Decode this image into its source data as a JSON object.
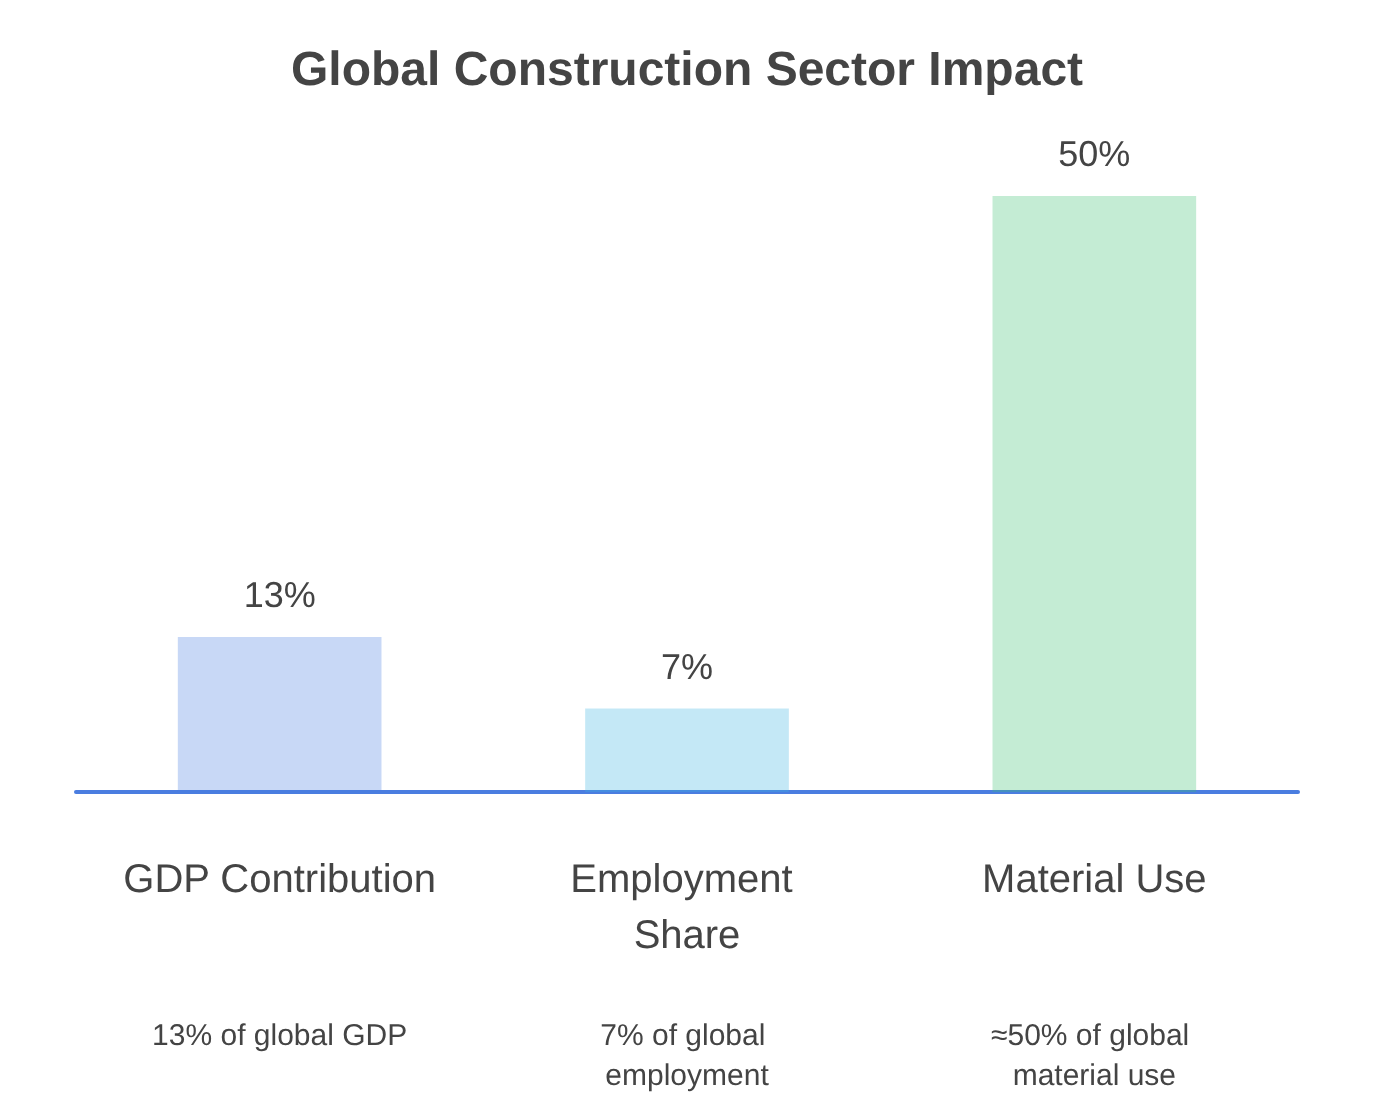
{
  "chart_data": {
    "type": "bar",
    "title": "Global Construction Sector Impact",
    "categories": [
      "GDP Contribution",
      "Employment Share",
      "Material Use"
    ],
    "values": [
      13,
      7,
      50
    ],
    "colors": [
      "#4a7de0",
      "#3bb4e0",
      "#3dbf72"
    ],
    "value_labels": [
      "13%",
      "7%",
      "50%"
    ],
    "annotations": [
      "13% of global GDP",
      "7% of global employment",
      "≈50% of global material use"
    ],
    "relative": false
  }
}
